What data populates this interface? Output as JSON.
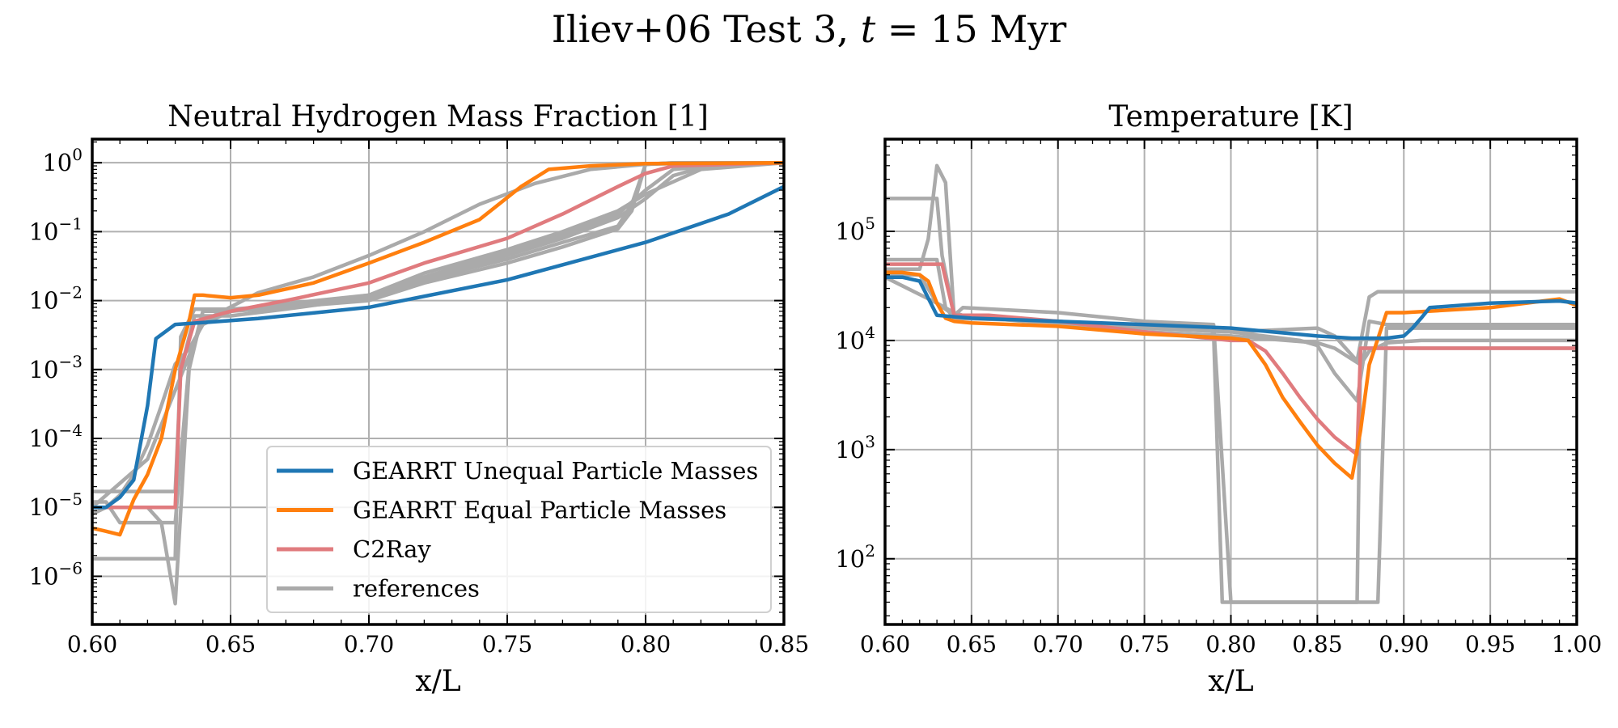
{
  "figure": {
    "suptitle_prefix": "Iliev+06 Test 3, ",
    "suptitle_var": "t",
    "suptitle_suffix": " = 15 Myr"
  },
  "colors": {
    "gearrt_unequal": "#1f77b4",
    "gearrt_equal": "#ff7f0e",
    "c2ray": "#e07b7e",
    "references": "#aaaaaa"
  },
  "legend": {
    "entries": [
      {
        "label": "GEARRT Unequal Particle Masses",
        "color_key": "gearrt_unequal"
      },
      {
        "label": "GEARRT Equal Particle Masses",
        "color_key": "gearrt_equal"
      },
      {
        "label": "C2Ray",
        "color_key": "c2ray"
      },
      {
        "label": "references",
        "color_key": "references"
      }
    ],
    "placement": "lower right"
  },
  "chart_data": [
    {
      "type": "line",
      "title": "Neutral Hydrogen Mass Fraction [1]",
      "xlabel": "x/L",
      "ylabel": "",
      "xscale": "linear",
      "yscale": "log",
      "xlim": [
        0.6,
        0.85
      ],
      "ylim": [
        2e-07,
        2.2
      ],
      "xticks": [
        0.6,
        0.65,
        0.7,
        0.75,
        0.8,
        0.85
      ],
      "xtick_labels": [
        "0.60",
        "0.65",
        "0.70",
        "0.75",
        "0.80",
        "0.85"
      ],
      "yticks": [
        1e-06,
        1e-05,
        0.0001,
        0.001,
        0.01,
        0.1,
        1
      ],
      "ytick_exponents": [
        "−6",
        "−5",
        "−4",
        "−3",
        "−2",
        "−1",
        "0"
      ],
      "grid": true,
      "series": [
        {
          "color_key": "references",
          "x": [
            0.6,
            0.61,
            0.62,
            0.625,
            0.63,
            0.632,
            0.637,
            0.65,
            0.67,
            0.7,
            0.72,
            0.75,
            0.77,
            0.79,
            0.8,
            0.81,
            0.82,
            0.83,
            0.85
          ],
          "y": [
            1.7e-05,
            1.7e-05,
            1.7e-05,
            1.7e-05,
            1.7e-05,
            0.001,
            0.006,
            0.006,
            0.0075,
            0.011,
            0.02,
            0.045,
            0.08,
            0.16,
            0.3,
            0.65,
            0.85,
            0.93,
            1.0
          ]
        },
        {
          "color_key": "references",
          "x": [
            0.6,
            0.61,
            0.62,
            0.625,
            0.63,
            0.632,
            0.637,
            0.65,
            0.67,
            0.7,
            0.72,
            0.75,
            0.77,
            0.79,
            0.8,
            0.81,
            0.83,
            0.85
          ],
          "y": [
            1.8e-06,
            1.8e-06,
            1.8e-06,
            1.8e-06,
            1.8e-06,
            0.003,
            0.0075,
            0.0075,
            0.0085,
            0.012,
            0.022,
            0.05,
            0.09,
            0.18,
            0.4,
            0.8,
            0.95,
            1.0
          ]
        },
        {
          "color_key": "references",
          "x": [
            0.6,
            0.605,
            0.61,
            0.62,
            0.625,
            0.63,
            0.635,
            0.64,
            0.65,
            0.67,
            0.7,
            0.72,
            0.75,
            0.77,
            0.79,
            0.795,
            0.8,
            0.81,
            0.85
          ],
          "y": [
            1.2e-05,
            1.2e-05,
            6e-06,
            6e-06,
            6e-06,
            6e-06,
            0.0012,
            0.007,
            0.007,
            0.008,
            0.011,
            0.02,
            0.04,
            0.07,
            0.12,
            0.25,
            0.95,
            1.0,
            1.0
          ]
        },
        {
          "color_key": "references",
          "x": [
            0.6,
            0.605,
            0.61,
            0.62,
            0.625,
            0.63,
            0.635,
            0.64,
            0.65,
            0.67,
            0.7,
            0.72,
            0.75,
            0.77,
            0.79,
            0.795,
            0.8,
            0.81,
            0.85
          ],
          "y": [
            1e-05,
            1e-05,
            1e-05,
            1e-05,
            6e-06,
            4e-07,
            0.001,
            0.007,
            0.007,
            0.008,
            0.01,
            0.018,
            0.035,
            0.06,
            0.11,
            0.2,
            0.95,
            1.0,
            1.0
          ]
        },
        {
          "color_key": "references",
          "x": [
            0.6,
            0.605,
            0.61,
            0.615,
            0.62,
            0.625,
            0.63,
            0.635,
            0.64,
            0.65,
            0.67,
            0.7,
            0.72,
            0.75,
            0.77,
            0.79,
            0.8,
            0.82,
            0.85
          ],
          "y": [
            8e-06,
            1e-05,
            1.5e-05,
            3e-05,
            8e-05,
            0.0003,
            0.0012,
            0.002,
            0.0045,
            0.007,
            0.009,
            0.012,
            0.025,
            0.055,
            0.1,
            0.2,
            0.35,
            0.8,
            1.0
          ]
        },
        {
          "color_key": "references",
          "x": [
            0.6,
            0.62,
            0.64,
            0.66,
            0.68,
            0.7,
            0.72,
            0.74,
            0.76,
            0.78,
            0.8,
            0.82,
            0.85
          ],
          "y": [
            1e-05,
            5e-05,
            0.005,
            0.013,
            0.022,
            0.045,
            0.1,
            0.25,
            0.5,
            0.8,
            0.95,
            1.0,
            1.0
          ]
        },
        {
          "color_key": "c2ray",
          "x": [
            0.6,
            0.61,
            0.62,
            0.625,
            0.63,
            0.632,
            0.637,
            0.65,
            0.67,
            0.7,
            0.72,
            0.75,
            0.77,
            0.79,
            0.8,
            0.81,
            0.85
          ],
          "y": [
            1e-05,
            1e-05,
            1e-05,
            1e-05,
            1e-05,
            0.001,
            0.005,
            0.007,
            0.01,
            0.018,
            0.035,
            0.08,
            0.18,
            0.45,
            0.7,
            0.9,
            1.0
          ]
        },
        {
          "color_key": "gearrt_equal",
          "x": [
            0.6,
            0.605,
            0.61,
            0.615,
            0.62,
            0.625,
            0.63,
            0.635,
            0.637,
            0.64,
            0.65,
            0.66,
            0.68,
            0.7,
            0.72,
            0.74,
            0.755,
            0.765,
            0.78,
            0.8,
            0.85
          ],
          "y": [
            5e-06,
            4.5e-06,
            4e-06,
            1.3e-05,
            3e-05,
            0.0001,
            0.001,
            0.005,
            0.012,
            0.012,
            0.011,
            0.012,
            0.018,
            0.035,
            0.07,
            0.15,
            0.45,
            0.8,
            0.9,
            0.97,
            1.0
          ]
        },
        {
          "color_key": "gearrt_unequal",
          "x": [
            0.6,
            0.605,
            0.61,
            0.615,
            0.62,
            0.623,
            0.63,
            0.64,
            0.66,
            0.7,
            0.75,
            0.8,
            0.83,
            0.85
          ],
          "y": [
            1e-05,
            1e-05,
            1.4e-05,
            2.5e-05,
            0.0003,
            0.0028,
            0.0045,
            0.0048,
            0.0055,
            0.008,
            0.02,
            0.07,
            0.18,
            0.45
          ]
        }
      ]
    },
    {
      "type": "line",
      "title": "Temperature [K]",
      "xlabel": "x/L",
      "ylabel": "",
      "xscale": "linear",
      "yscale": "log",
      "xlim": [
        0.6,
        1.0
      ],
      "ylim": [
        25,
        700000
      ],
      "xticks": [
        0.6,
        0.65,
        0.7,
        0.75,
        0.8,
        0.85,
        0.9,
        0.95,
        1.0
      ],
      "xtick_labels": [
        "0.60",
        "0.65",
        "0.70",
        "0.75",
        "0.80",
        "0.85",
        "0.90",
        "0.95",
        "1.00"
      ],
      "yticks": [
        100,
        1000,
        10000,
        100000
      ],
      "ytick_exponents": [
        "2",
        "3",
        "4",
        "5"
      ],
      "grid": true,
      "series": [
        {
          "color_key": "references",
          "x": [
            0.6,
            0.62,
            0.63,
            0.633,
            0.64,
            0.645,
            0.7,
            0.75,
            0.79,
            0.8,
            0.803,
            0.87,
            0.873,
            0.875,
            0.88,
            0.89,
            1.0
          ],
          "y": [
            200000,
            200000,
            200000,
            60000,
            17000,
            20000,
            18000,
            15000,
            14000,
            40,
            40,
            40,
            40,
            8500,
            8500,
            8500,
            8500
          ]
        },
        {
          "color_key": "references",
          "x": [
            0.6,
            0.62,
            0.625,
            0.63,
            0.635,
            0.64,
            0.645,
            0.7,
            0.75,
            0.78,
            0.79,
            0.795,
            0.8,
            0.87,
            0.875,
            0.88,
            0.885,
            0.89,
            1.0
          ],
          "y": [
            55000,
            55000,
            55000,
            55000,
            20000,
            16000,
            16000,
            15000,
            13000,
            13000,
            12000,
            40,
            40,
            40,
            40,
            40,
            40,
            13000,
            13000
          ]
        },
        {
          "color_key": "references",
          "x": [
            0.6,
            0.62,
            0.625,
            0.63,
            0.635,
            0.64,
            0.7,
            0.75,
            0.8,
            0.84,
            0.85,
            0.86,
            0.873,
            0.88,
            0.89,
            1.0
          ],
          "y": [
            45000,
            45000,
            85000,
            400000,
            280000,
            16000,
            15000,
            13000,
            12000,
            10000,
            9000,
            5000,
            2800,
            15000,
            14000,
            14000
          ]
        },
        {
          "color_key": "references",
          "x": [
            0.6,
            0.62,
            0.63,
            0.64,
            0.65,
            0.7,
            0.75,
            0.8,
            0.85,
            0.86,
            0.873,
            0.88,
            0.885,
            0.9,
            1.0
          ],
          "y": [
            40000,
            40000,
            22000,
            18000,
            16000,
            15000,
            13000,
            12000,
            13000,
            11000,
            6500,
            25000,
            28000,
            28000,
            28000
          ]
        },
        {
          "color_key": "references",
          "x": [
            0.6,
            0.63,
            0.64,
            0.66,
            0.7,
            0.75,
            0.8,
            0.85,
            0.86,
            0.875,
            0.88,
            0.89,
            0.91,
            0.95,
            1.0
          ],
          "y": [
            38000,
            22000,
            17000,
            16000,
            14000,
            12000,
            11000,
            9500,
            8500,
            6000,
            8000,
            9500,
            10000,
            10000,
            10000
          ]
        },
        {
          "color_key": "c2ray",
          "x": [
            0.6,
            0.62,
            0.63,
            0.633,
            0.64,
            0.66,
            0.7,
            0.75,
            0.8,
            0.81,
            0.82,
            0.83,
            0.84,
            0.85,
            0.86,
            0.873,
            0.875,
            0.88,
            0.9,
            1.0
          ],
          "y": [
            50000,
            50000,
            50000,
            50000,
            17000,
            17000,
            15000,
            12000,
            10000,
            10000,
            8000,
            5000,
            3000,
            1900,
            1300,
            900,
            8500,
            8500,
            8500,
            8500
          ]
        },
        {
          "color_key": "gearrt_equal",
          "x": [
            0.6,
            0.61,
            0.62,
            0.625,
            0.63,
            0.635,
            0.64,
            0.65,
            0.7,
            0.75,
            0.8,
            0.81,
            0.82,
            0.83,
            0.84,
            0.85,
            0.86,
            0.87,
            0.875,
            0.88,
            0.89,
            0.9,
            0.95,
            0.99,
            1.0
          ],
          "y": [
            42000,
            42000,
            40000,
            35000,
            22000,
            16000,
            15000,
            14500,
            13500,
            11500,
            10500,
            10000,
            6000,
            3000,
            1800,
            1100,
            750,
            550,
            1500,
            6000,
            18000,
            18000,
            20000,
            24000,
            21000
          ]
        },
        {
          "color_key": "gearrt_unequal",
          "x": [
            0.6,
            0.61,
            0.62,
            0.63,
            0.64,
            0.65,
            0.7,
            0.75,
            0.8,
            0.85,
            0.87,
            0.89,
            0.9,
            0.905,
            0.91,
            0.915,
            0.95,
            0.99,
            1.0
          ],
          "y": [
            38000,
            38000,
            35000,
            17000,
            16500,
            16000,
            15000,
            14000,
            13000,
            11000,
            10500,
            10500,
            11000,
            13000,
            16000,
            20000,
            22000,
            23000,
            22000
          ]
        }
      ]
    }
  ]
}
